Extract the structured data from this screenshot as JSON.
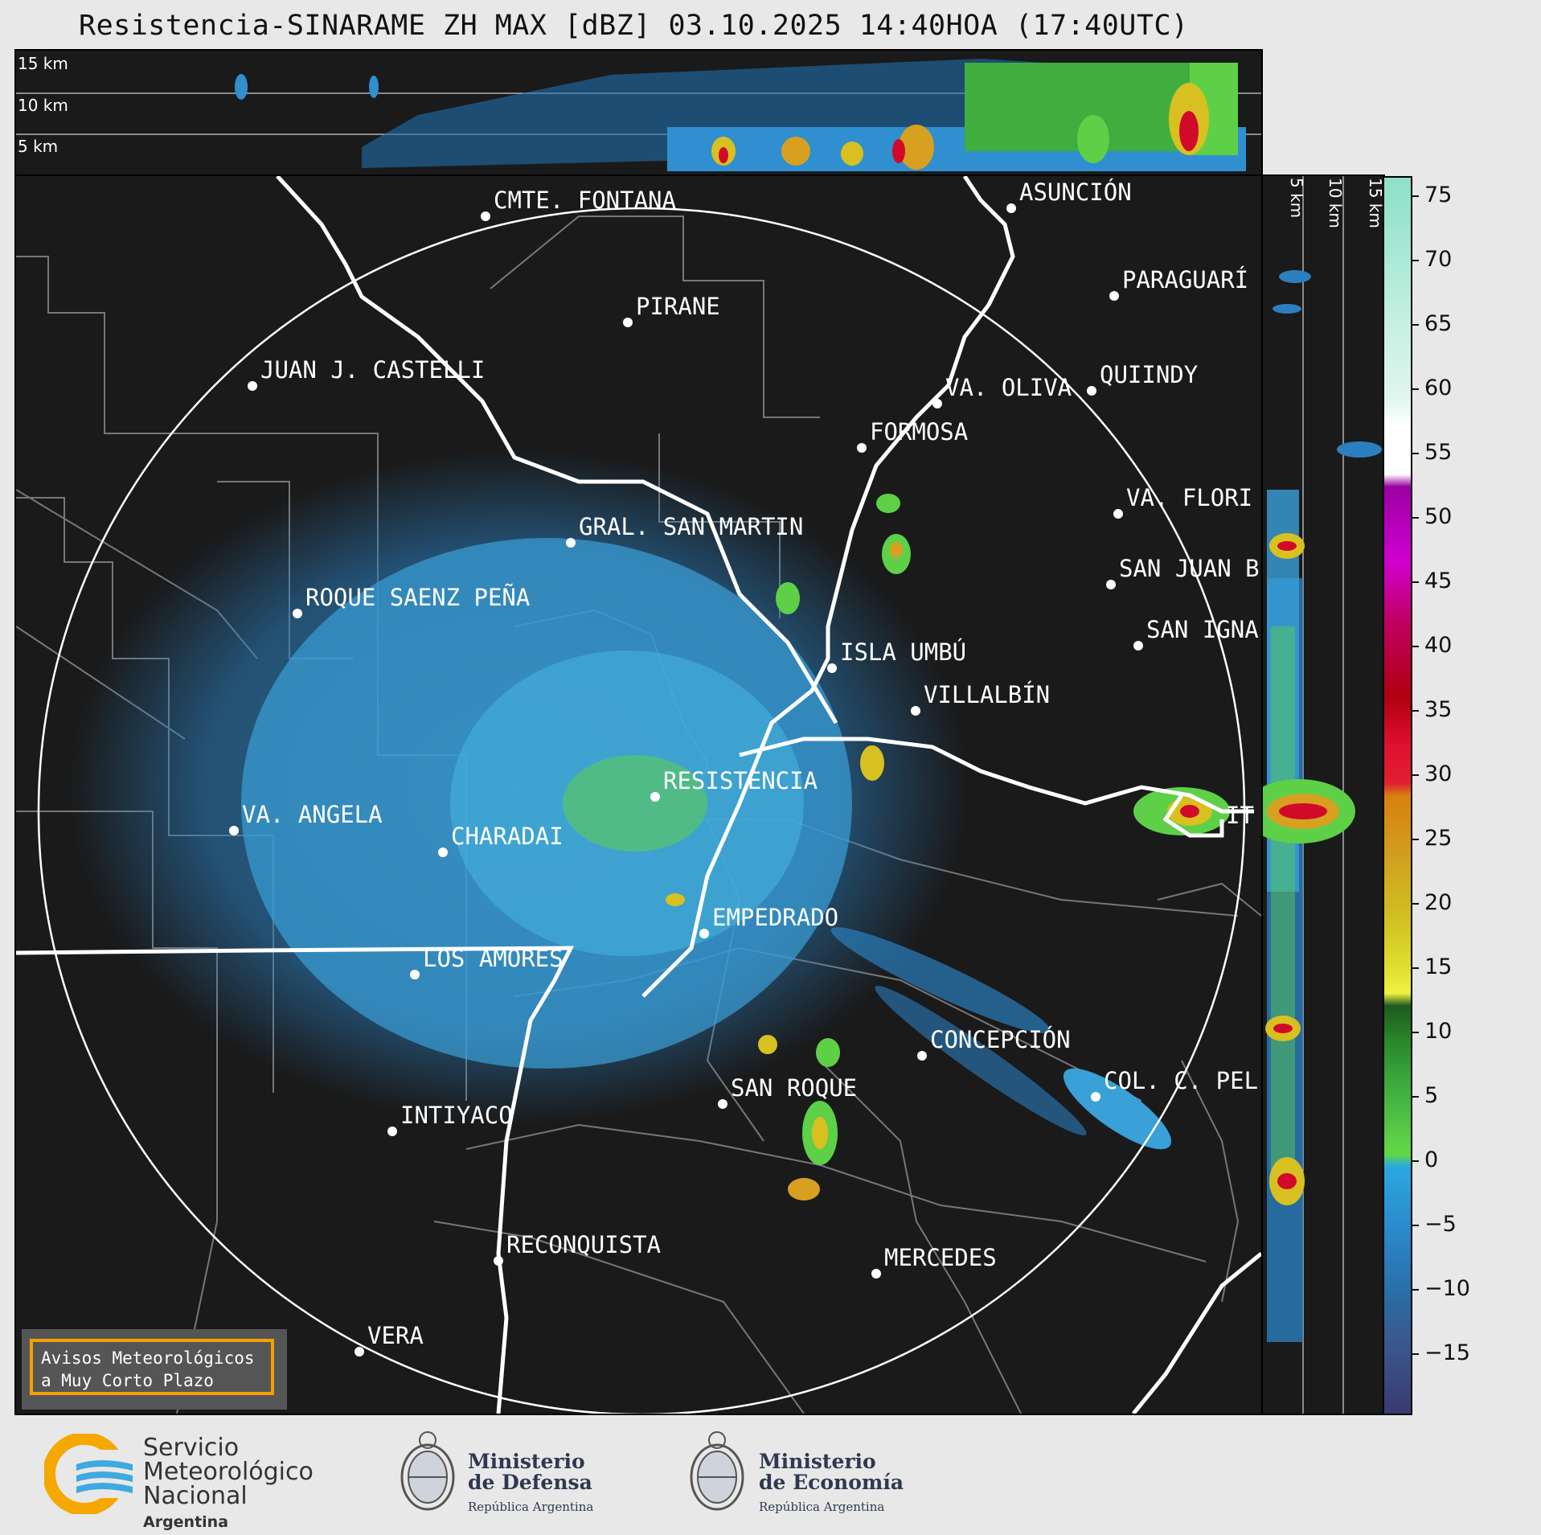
{
  "title": "Resistencia-SINARAME ZH MAX [dBZ] 03.10.2025 14:40HOA (17:40UTC)",
  "top_panel": {
    "levels": [
      "15 km",
      "10 km",
      "5 km"
    ]
  },
  "side_panel": {
    "levels": [
      "5 km",
      "10 km",
      "15 km"
    ]
  },
  "cities": [
    {
      "name": "CMTE. FONTANA"
    },
    {
      "name": "ASUNCIÓN"
    },
    {
      "name": "PARAGUARÍ"
    },
    {
      "name": "PIRANE"
    },
    {
      "name": "JUAN J. CASTELLI"
    },
    {
      "name": "VA. OLIVA"
    },
    {
      "name": "QUIINDY"
    },
    {
      "name": "FORMOSA"
    },
    {
      "name": "VA. FLORI"
    },
    {
      "name": "GRAL. SAN MARTIN"
    },
    {
      "name": "SAN JUAN B"
    },
    {
      "name": "ROQUE SAENZ PEÑA"
    },
    {
      "name": "SAN IGNA"
    },
    {
      "name": "ISLA UMBÚ"
    },
    {
      "name": "VILLALBÍN"
    },
    {
      "name": "RESISTENCIA"
    },
    {
      "name": "VA. ANGELA"
    },
    {
      "name": "CHARADAI"
    },
    {
      "name": "IT"
    },
    {
      "name": "EMPEDRADO"
    },
    {
      "name": "LOS AMORES"
    },
    {
      "name": "CONCEPCIÓN"
    },
    {
      "name": "SAN ROQUE"
    },
    {
      "name": "COL. C. PEL"
    },
    {
      "name": "INTIYACO"
    },
    {
      "name": "RECONQUISTA"
    },
    {
      "name": "MERCEDES"
    },
    {
      "name": "VERA"
    }
  ],
  "colorbar": {
    "unit": "dBZ",
    "range": [
      -20,
      77
    ],
    "ticks": [
      "75",
      "70",
      "65",
      "60",
      "55",
      "50",
      "45",
      "40",
      "35",
      "30",
      "25",
      "20",
      "15",
      "10",
      "5",
      "0",
      "−5",
      "−10",
      "−15"
    ]
  },
  "notice": {
    "line1": "Avisos Meteorológicos",
    "line2": "a Muy Corto Plazo"
  },
  "logos": {
    "smn": {
      "line1": "Servicio",
      "line2": "Meteorológico",
      "line3": "Nacional",
      "line4": "Argentina"
    },
    "defensa": {
      "line1": "Ministerio",
      "line2": "de Defensa",
      "line3": "República Argentina"
    },
    "economia": {
      "line1": "Ministerio",
      "line2": "de Economía",
      "line3": "República Argentina"
    }
  },
  "colors": {
    "background": "#1a1a1a",
    "frame": "#e8e8e8",
    "border": "#ffffff",
    "province_lines": "#777777",
    "notice_border": "#f5a000"
  }
}
